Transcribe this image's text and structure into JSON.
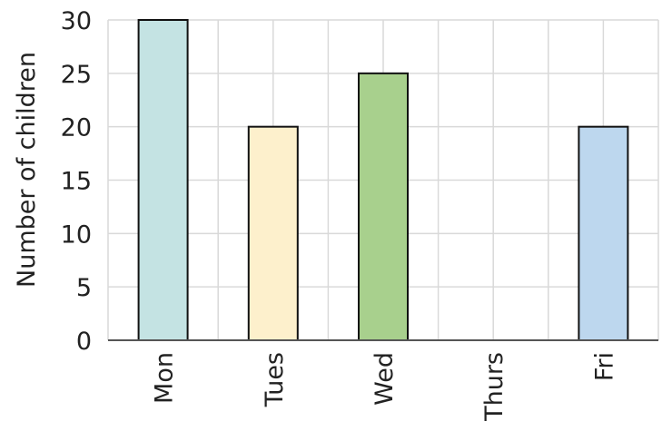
{
  "chart_data": {
    "type": "bar",
    "categories": [
      "Mon",
      "Tues",
      "Wed",
      "Thurs",
      "Fri"
    ],
    "values": [
      30,
      20,
      25,
      0,
      20
    ],
    "colors": [
      "#c4e3e3",
      "#fdf0cc",
      "#a8d08d",
      "#ffffff",
      "#bdd7ee"
    ],
    "xlabel": "",
    "ylabel": "Number of children",
    "ylim": [
      0,
      30
    ],
    "yticks": [
      0,
      5,
      10,
      15,
      20,
      25,
      30
    ],
    "grid": true,
    "legend": "none"
  }
}
